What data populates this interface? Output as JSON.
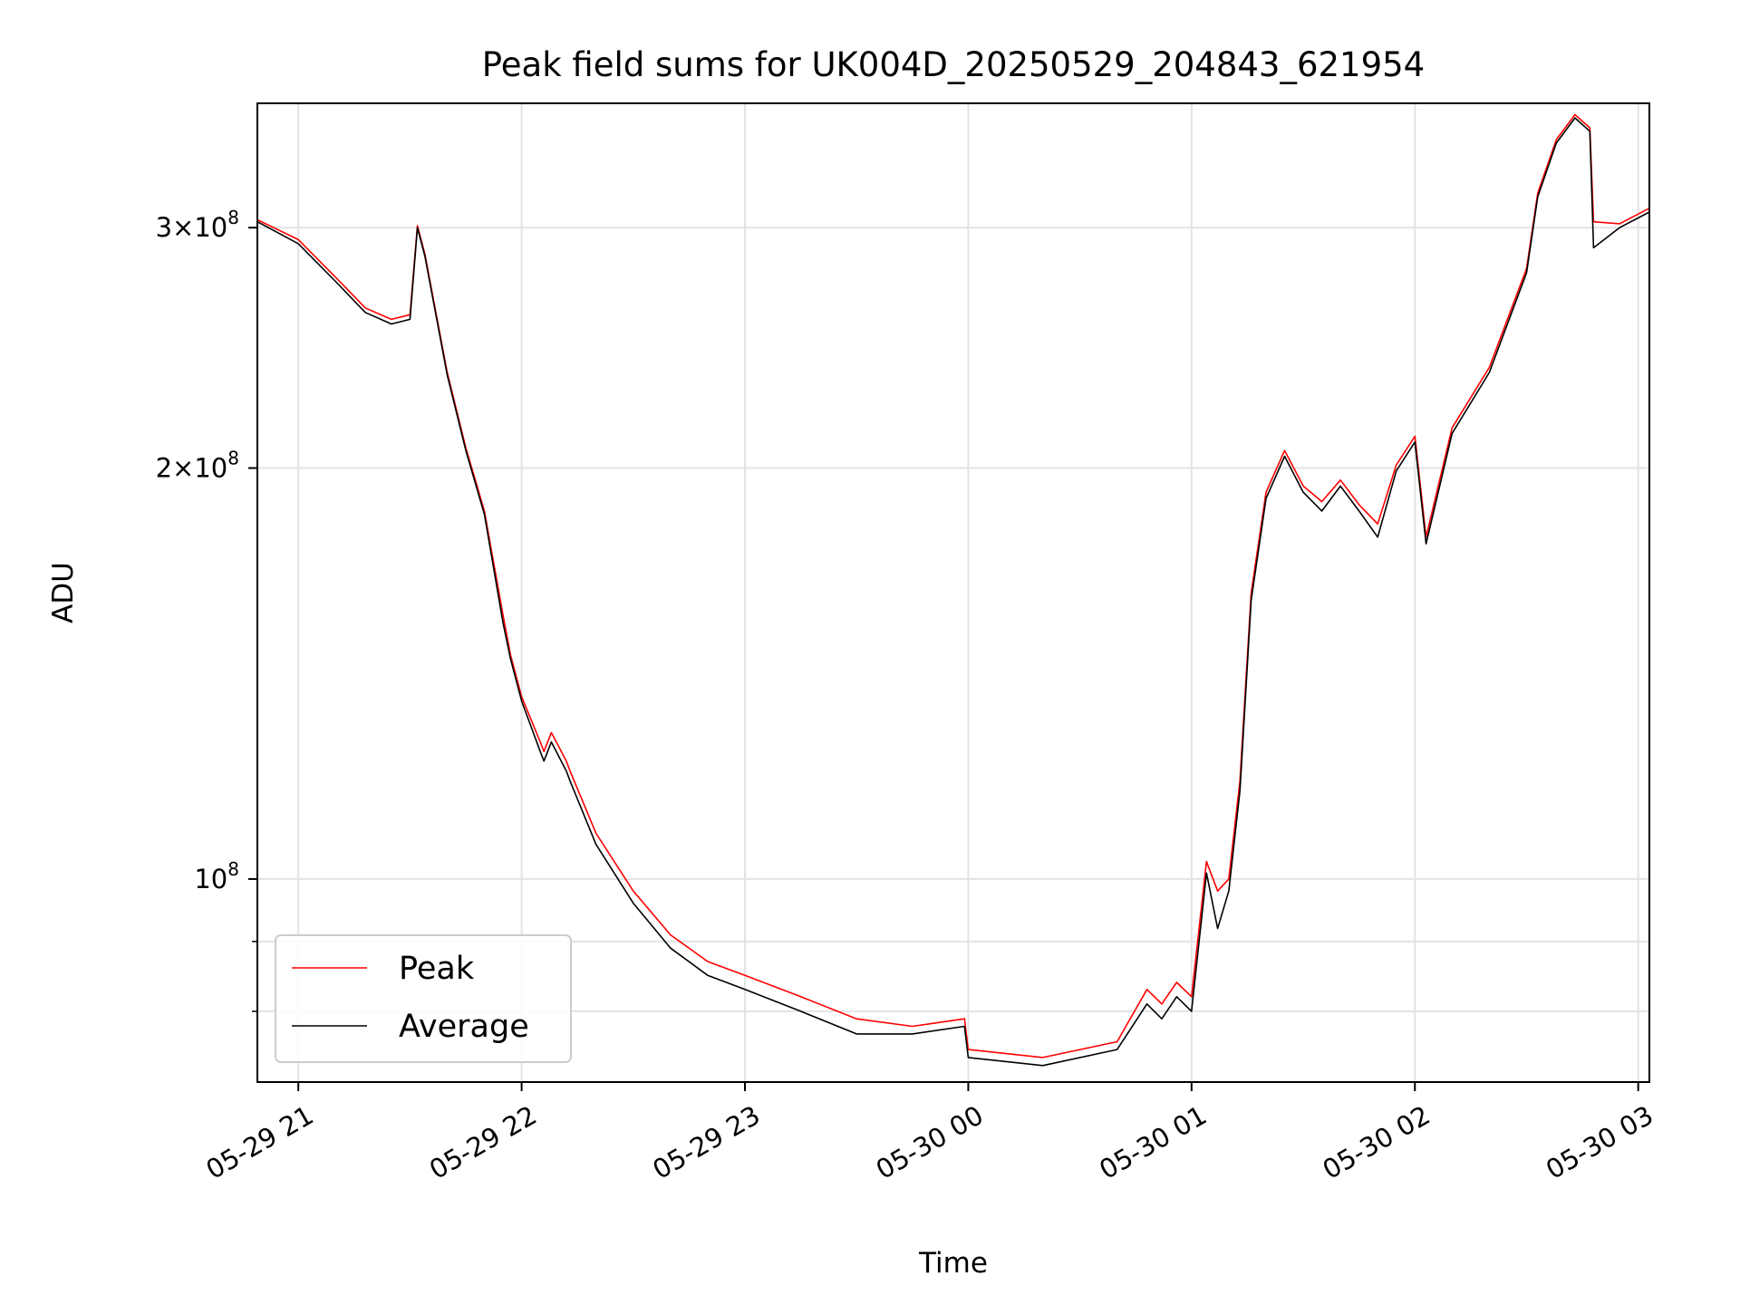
{
  "chart_data": {
    "type": "line",
    "title": "Peak field sums for UK004D_20250529_204843_621954",
    "xlabel": "Time",
    "ylabel": "ADU",
    "yscale": "log",
    "ylim": [
      71000000,
      370000000
    ],
    "xlim": [
      "2025-05-29 20:49",
      "2025-05-30 03:03"
    ],
    "grid": true,
    "legend_position": "lower-left",
    "x_ticks": [
      {
        "t": "2025-05-29 21:00",
        "label": "05-29 21"
      },
      {
        "t": "2025-05-29 22:00",
        "label": "05-29 22"
      },
      {
        "t": "2025-05-29 23:00",
        "label": "05-29 23"
      },
      {
        "t": "2025-05-30 00:00",
        "label": "05-30 00"
      },
      {
        "t": "2025-05-30 01:00",
        "label": "05-30 01"
      },
      {
        "t": "2025-05-30 02:00",
        "label": "05-30 02"
      },
      {
        "t": "2025-05-30 03:00",
        "label": "05-30 03"
      }
    ],
    "y_ticks": [
      {
        "value": 300000000,
        "mantissa": "3",
        "exp": "8"
      },
      {
        "value": 200000000,
        "mantissa": "2",
        "exp": "8"
      },
      {
        "value": 100000000,
        "mantissa": "",
        "exp": "8"
      }
    ],
    "y_minor_ticks": [
      80000000,
      90000000
    ],
    "series": [
      {
        "name": "Peak",
        "color": "#ff0000",
        "x": [
          "2025-05-29 20:49",
          "2025-05-29 21:00",
          "2025-05-29 21:10",
          "2025-05-29 21:18",
          "2025-05-29 21:25",
          "2025-05-29 21:30",
          "2025-05-29 21:32",
          "2025-05-29 21:34",
          "2025-05-29 21:40",
          "2025-05-29 21:45",
          "2025-05-29 21:50",
          "2025-05-29 21:55",
          "2025-05-29 21:57",
          "2025-05-29 22:00",
          "2025-05-29 22:05",
          "2025-05-29 22:06",
          "2025-05-29 22:08",
          "2025-05-29 22:12",
          "2025-05-29 22:13",
          "2025-05-29 22:20",
          "2025-05-29 22:30",
          "2025-05-29 22:40",
          "2025-05-29 22:50",
          "2025-05-29 23:00",
          "2025-05-29 23:15",
          "2025-05-29 23:30",
          "2025-05-29 23:45",
          "2025-05-29 23:59",
          "2025-05-30 00:00",
          "2025-05-30 00:20",
          "2025-05-30 00:40",
          "2025-05-30 00:48",
          "2025-05-30 00:52",
          "2025-05-30 00:56",
          "2025-05-30 01:00",
          "2025-05-30 01:04",
          "2025-05-30 01:07",
          "2025-05-30 01:10",
          "2025-05-30 01:13",
          "2025-05-30 01:16",
          "2025-05-30 01:20",
          "2025-05-30 01:25",
          "2025-05-30 01:30",
          "2025-05-30 01:35",
          "2025-05-30 01:40",
          "2025-05-30 01:45",
          "2025-05-30 01:50",
          "2025-05-30 01:55",
          "2025-05-30 02:00",
          "2025-05-30 02:03",
          "2025-05-30 02:10",
          "2025-05-30 02:20",
          "2025-05-30 02:30",
          "2025-05-30 02:33",
          "2025-05-30 02:38",
          "2025-05-30 02:43",
          "2025-05-30 02:47",
          "2025-05-30 02:48",
          "2025-05-30 02:55",
          "2025-05-30 03:03"
        ],
        "values": [
          304000000,
          294000000,
          276000000,
          262000000,
          257000000,
          259000000,
          301000000,
          287000000,
          235000000,
          207000000,
          186000000,
          156000000,
          146000000,
          136000000,
          126000000,
          124000000,
          128000000,
          122000000,
          120000000,
          108000000,
          98000000,
          91000000,
          87000000,
          85000000,
          82000000,
          79000000,
          78000000,
          79000000,
          75000000,
          74000000,
          76000000,
          83000000,
          81000000,
          84000000,
          82000000,
          103000000,
          98000000,
          100000000,
          118000000,
          162000000,
          192000000,
          206000000,
          194000000,
          189000000,
          196000000,
          188000000,
          182000000,
          201000000,
          211000000,
          178000000,
          214000000,
          237000000,
          280000000,
          318000000,
          348000000,
          363000000,
          355000000,
          303000000,
          302000000,
          310000000
        ]
      },
      {
        "name": "Average",
        "color": "#000000",
        "x": [
          "2025-05-29 20:49",
          "2025-05-29 21:00",
          "2025-05-29 21:10",
          "2025-05-29 21:18",
          "2025-05-29 21:25",
          "2025-05-29 21:30",
          "2025-05-29 21:32",
          "2025-05-29 21:34",
          "2025-05-29 21:40",
          "2025-05-29 21:45",
          "2025-05-29 21:50",
          "2025-05-29 21:55",
          "2025-05-29 21:57",
          "2025-05-29 22:00",
          "2025-05-29 22:05",
          "2025-05-29 22:06",
          "2025-05-29 22:08",
          "2025-05-29 22:12",
          "2025-05-29 22:13",
          "2025-05-29 22:20",
          "2025-05-29 22:30",
          "2025-05-29 22:40",
          "2025-05-29 22:50",
          "2025-05-29 23:00",
          "2025-05-29 23:15",
          "2025-05-29 23:30",
          "2025-05-29 23:45",
          "2025-05-29 23:59",
          "2025-05-30 00:00",
          "2025-05-30 00:20",
          "2025-05-30 00:40",
          "2025-05-30 00:48",
          "2025-05-30 00:52",
          "2025-05-30 00:56",
          "2025-05-30 01:00",
          "2025-05-30 01:04",
          "2025-05-30 01:07",
          "2025-05-30 01:10",
          "2025-05-30 01:13",
          "2025-05-30 01:16",
          "2025-05-30 01:20",
          "2025-05-30 01:25",
          "2025-05-30 01:30",
          "2025-05-30 01:35",
          "2025-05-30 01:40",
          "2025-05-30 01:45",
          "2025-05-30 01:50",
          "2025-05-30 01:55",
          "2025-05-30 02:00",
          "2025-05-30 02:03",
          "2025-05-30 02:10",
          "2025-05-30 02:20",
          "2025-05-30 02:30",
          "2025-05-30 02:33",
          "2025-05-30 02:38",
          "2025-05-30 02:43",
          "2025-05-30 02:47",
          "2025-05-30 02:48",
          "2025-05-30 02:55",
          "2025-05-30 03:03"
        ],
        "values": [
          303000000,
          292000000,
          274000000,
          260000000,
          255000000,
          257000000,
          300000000,
          286000000,
          234000000,
          206000000,
          185000000,
          154000000,
          145000000,
          135000000,
          124000000,
          122000000,
          126000000,
          120000000,
          118000000,
          106000000,
          96000000,
          89000000,
          85000000,
          83000000,
          80000000,
          77000000,
          77000000,
          78000000,
          74000000,
          73000000,
          75000000,
          81000000,
          79000000,
          82000000,
          80000000,
          101000000,
          92000000,
          98000000,
          116000000,
          160000000,
          190000000,
          204000000,
          192000000,
          186000000,
          194000000,
          186000000,
          178000000,
          199000000,
          209000000,
          176000000,
          212000000,
          235000000,
          278000000,
          316000000,
          346000000,
          361000000,
          353000000,
          290000000,
          300000000,
          308000000
        ]
      }
    ]
  }
}
